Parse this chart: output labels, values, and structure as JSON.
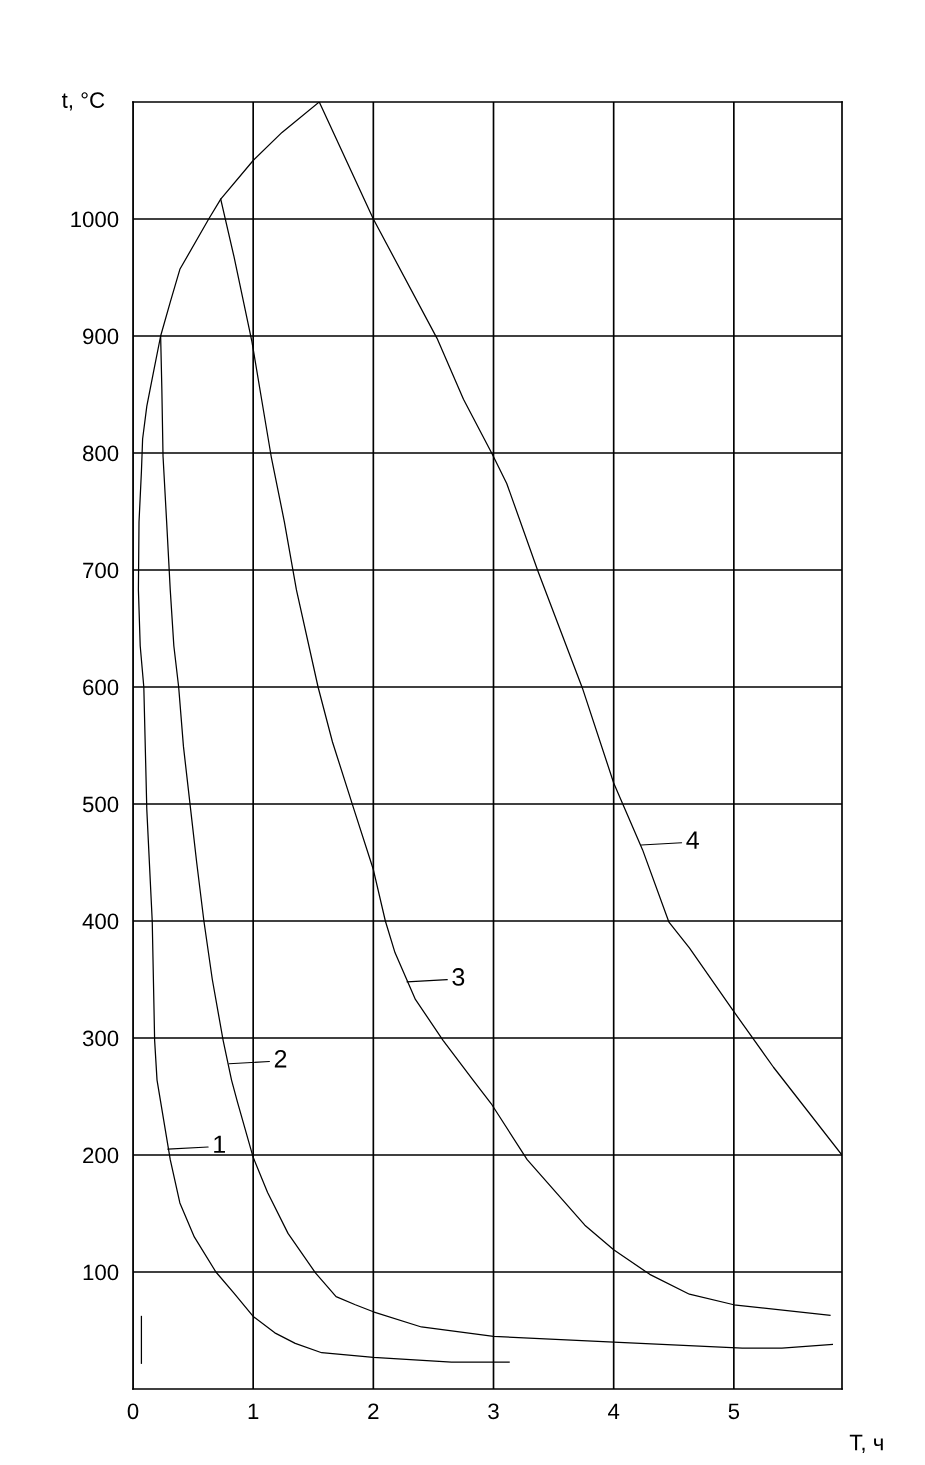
{
  "chart_data": {
    "type": "line",
    "xlabel": "T, ч",
    "ylabel": "t, °C",
    "xlim": [
      0,
      5.9
    ],
    "ylim": [
      0,
      1100
    ],
    "xticks": [
      0,
      1,
      2,
      3,
      4,
      5
    ],
    "yticks": [
      100,
      200,
      300,
      400,
      500,
      600,
      700,
      800,
      900,
      1000
    ],
    "grid": true,
    "marker": "none",
    "line_style": "solid",
    "series": [
      {
        "color": "#000000",
        "x": [
          3.13,
          2.65,
          2.0,
          1.57,
          1.35,
          1.18,
          1.0,
          0.84,
          0.69,
          0.51,
          0.39,
          0.31,
          0.255,
          0.2,
          0.18,
          0.16,
          0.115,
          0.09,
          0.06,
          0.045,
          0.05,
          0.07,
          0.08,
          0.115,
          0.17,
          0.23,
          0.31,
          0.39,
          0.63,
          0.73,
          1.0,
          1.24,
          1.55
        ],
        "values": [
          23,
          23,
          27,
          31,
          39,
          48,
          62,
          82,
          100,
          130,
          159,
          196,
          230,
          264,
          298,
          400,
          495,
          600,
          635,
          683,
          741,
          784,
          812,
          840,
          869,
          900,
          929,
          957,
          1000,
          1017,
          1050,
          1074,
          1100
        ]
      },
      {
        "color": "#000000",
        "x": [
          0.23,
          0.24,
          0.25,
          0.28,
          0.31,
          0.34,
          0.38,
          0.42,
          0.48,
          0.53,
          0.59,
          0.66,
          0.75,
          0.82,
          0.87,
          1.0,
          1.12,
          1.29,
          1.52,
          1.69,
          1.85,
          2.0,
          2.4,
          3.0,
          4.0,
          5.07,
          5.4,
          5.82
        ],
        "values": [
          900,
          855,
          797,
          741,
          683,
          635,
          600,
          549,
          495,
          450,
          400,
          350,
          298,
          264,
          245,
          198,
          168,
          133,
          99,
          79,
          72,
          66,
          53,
          45,
          40,
          35,
          35,
          38
        ]
      },
      {
        "color": "#000000",
        "x": [
          0.73,
          0.84,
          0.99,
          1.15,
          1.26,
          1.36,
          1.54,
          1.66,
          1.84,
          2.0,
          2.1,
          2.18,
          2.35,
          2.58,
          2.83,
          2.98,
          3.28,
          3.76,
          4.0,
          4.3,
          4.63,
          5.0,
          5.8
        ],
        "values": [
          1017,
          968,
          895,
          797,
          741,
          683,
          600,
          553,
          495,
          444,
          400,
          373,
          333,
          298,
          264,
          244,
          196,
          140,
          119,
          98,
          81,
          72,
          63
        ]
      },
      {
        "color": "#000000",
        "x": [
          1.55,
          2.0,
          2.53,
          2.75,
          2.99,
          3.11,
          3.37,
          3.74,
          4.0,
          4.24,
          4.46,
          4.63,
          4.99,
          5.33,
          5.9
        ],
        "values": [
          1100,
          1000,
          898,
          846,
          799,
          774,
          699,
          599,
          518,
          461,
          399,
          377,
          324,
          275,
          200
        ]
      },
      {
        "color": "#000000",
        "x": [
          0.07,
          0.07
        ],
        "values": [
          62,
          22
        ]
      }
    ],
    "annotations": [
      {
        "text": "1",
        "x": 0.29,
        "y": 205
      },
      {
        "text": "2",
        "x": 0.8,
        "y": 278
      },
      {
        "text": "3",
        "x": 2.28,
        "y": 348
      },
      {
        "text": "4",
        "x": 4.23,
        "y": 465
      }
    ]
  }
}
